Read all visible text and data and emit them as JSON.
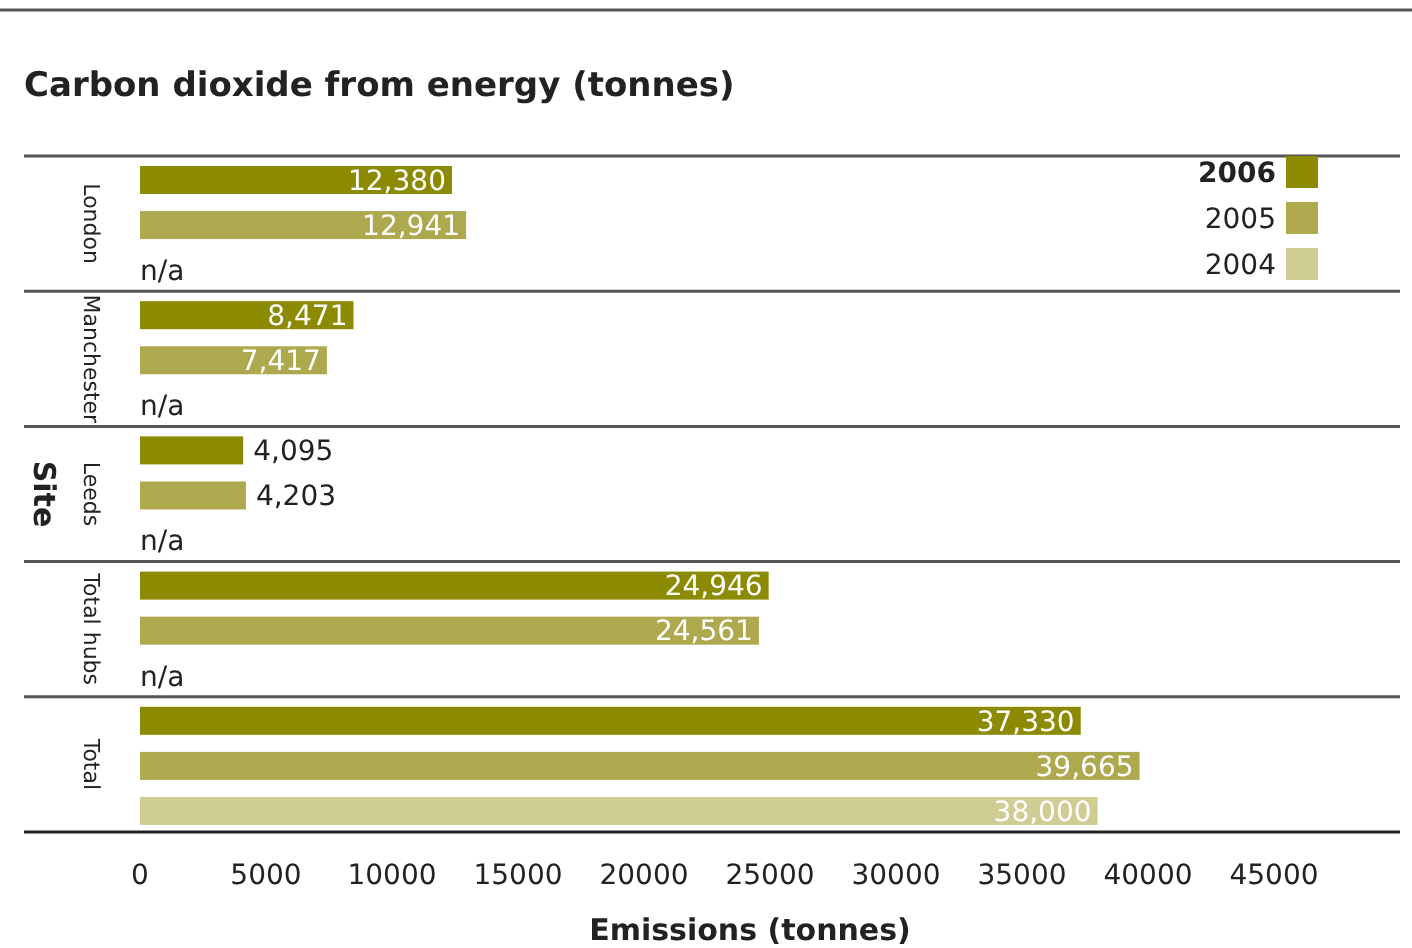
{
  "chart_data": {
    "type": "bar",
    "orientation": "horizontal",
    "title": "Carbon dioxide from energy (tonnes)",
    "xlabel": "Emissions (tonnes)",
    "ylabel": "Site",
    "categories": [
      "London",
      "Manchester",
      "Leeds",
      "Total hubs",
      "Total"
    ],
    "series": [
      {
        "name": "2006",
        "color": "#8c8a00",
        "values": [
          12380,
          8471,
          4095,
          24946,
          37330
        ],
        "value_labels": [
          "12,380",
          "8,471",
          "4,095",
          "24,946",
          "37,330"
        ]
      },
      {
        "name": "2005",
        "color": "#aea94f",
        "values": [
          12941,
          7417,
          4203,
          24561,
          39665
        ],
        "value_labels": [
          "12,941",
          "7,417",
          "4,203",
          "24,561",
          "39,665"
        ]
      },
      {
        "name": "2004",
        "color": "#cfcc94",
        "values": [
          null,
          null,
          null,
          null,
          38000
        ],
        "value_labels": [
          "n/a",
          "n/a",
          "n/a",
          "n/a",
          "38,000"
        ]
      }
    ],
    "xlim": [
      0,
      50000
    ],
    "xticks": [
      0,
      5000,
      10000,
      15000,
      20000,
      25000,
      30000,
      35000,
      40000,
      45000
    ],
    "legend": "top right"
  }
}
